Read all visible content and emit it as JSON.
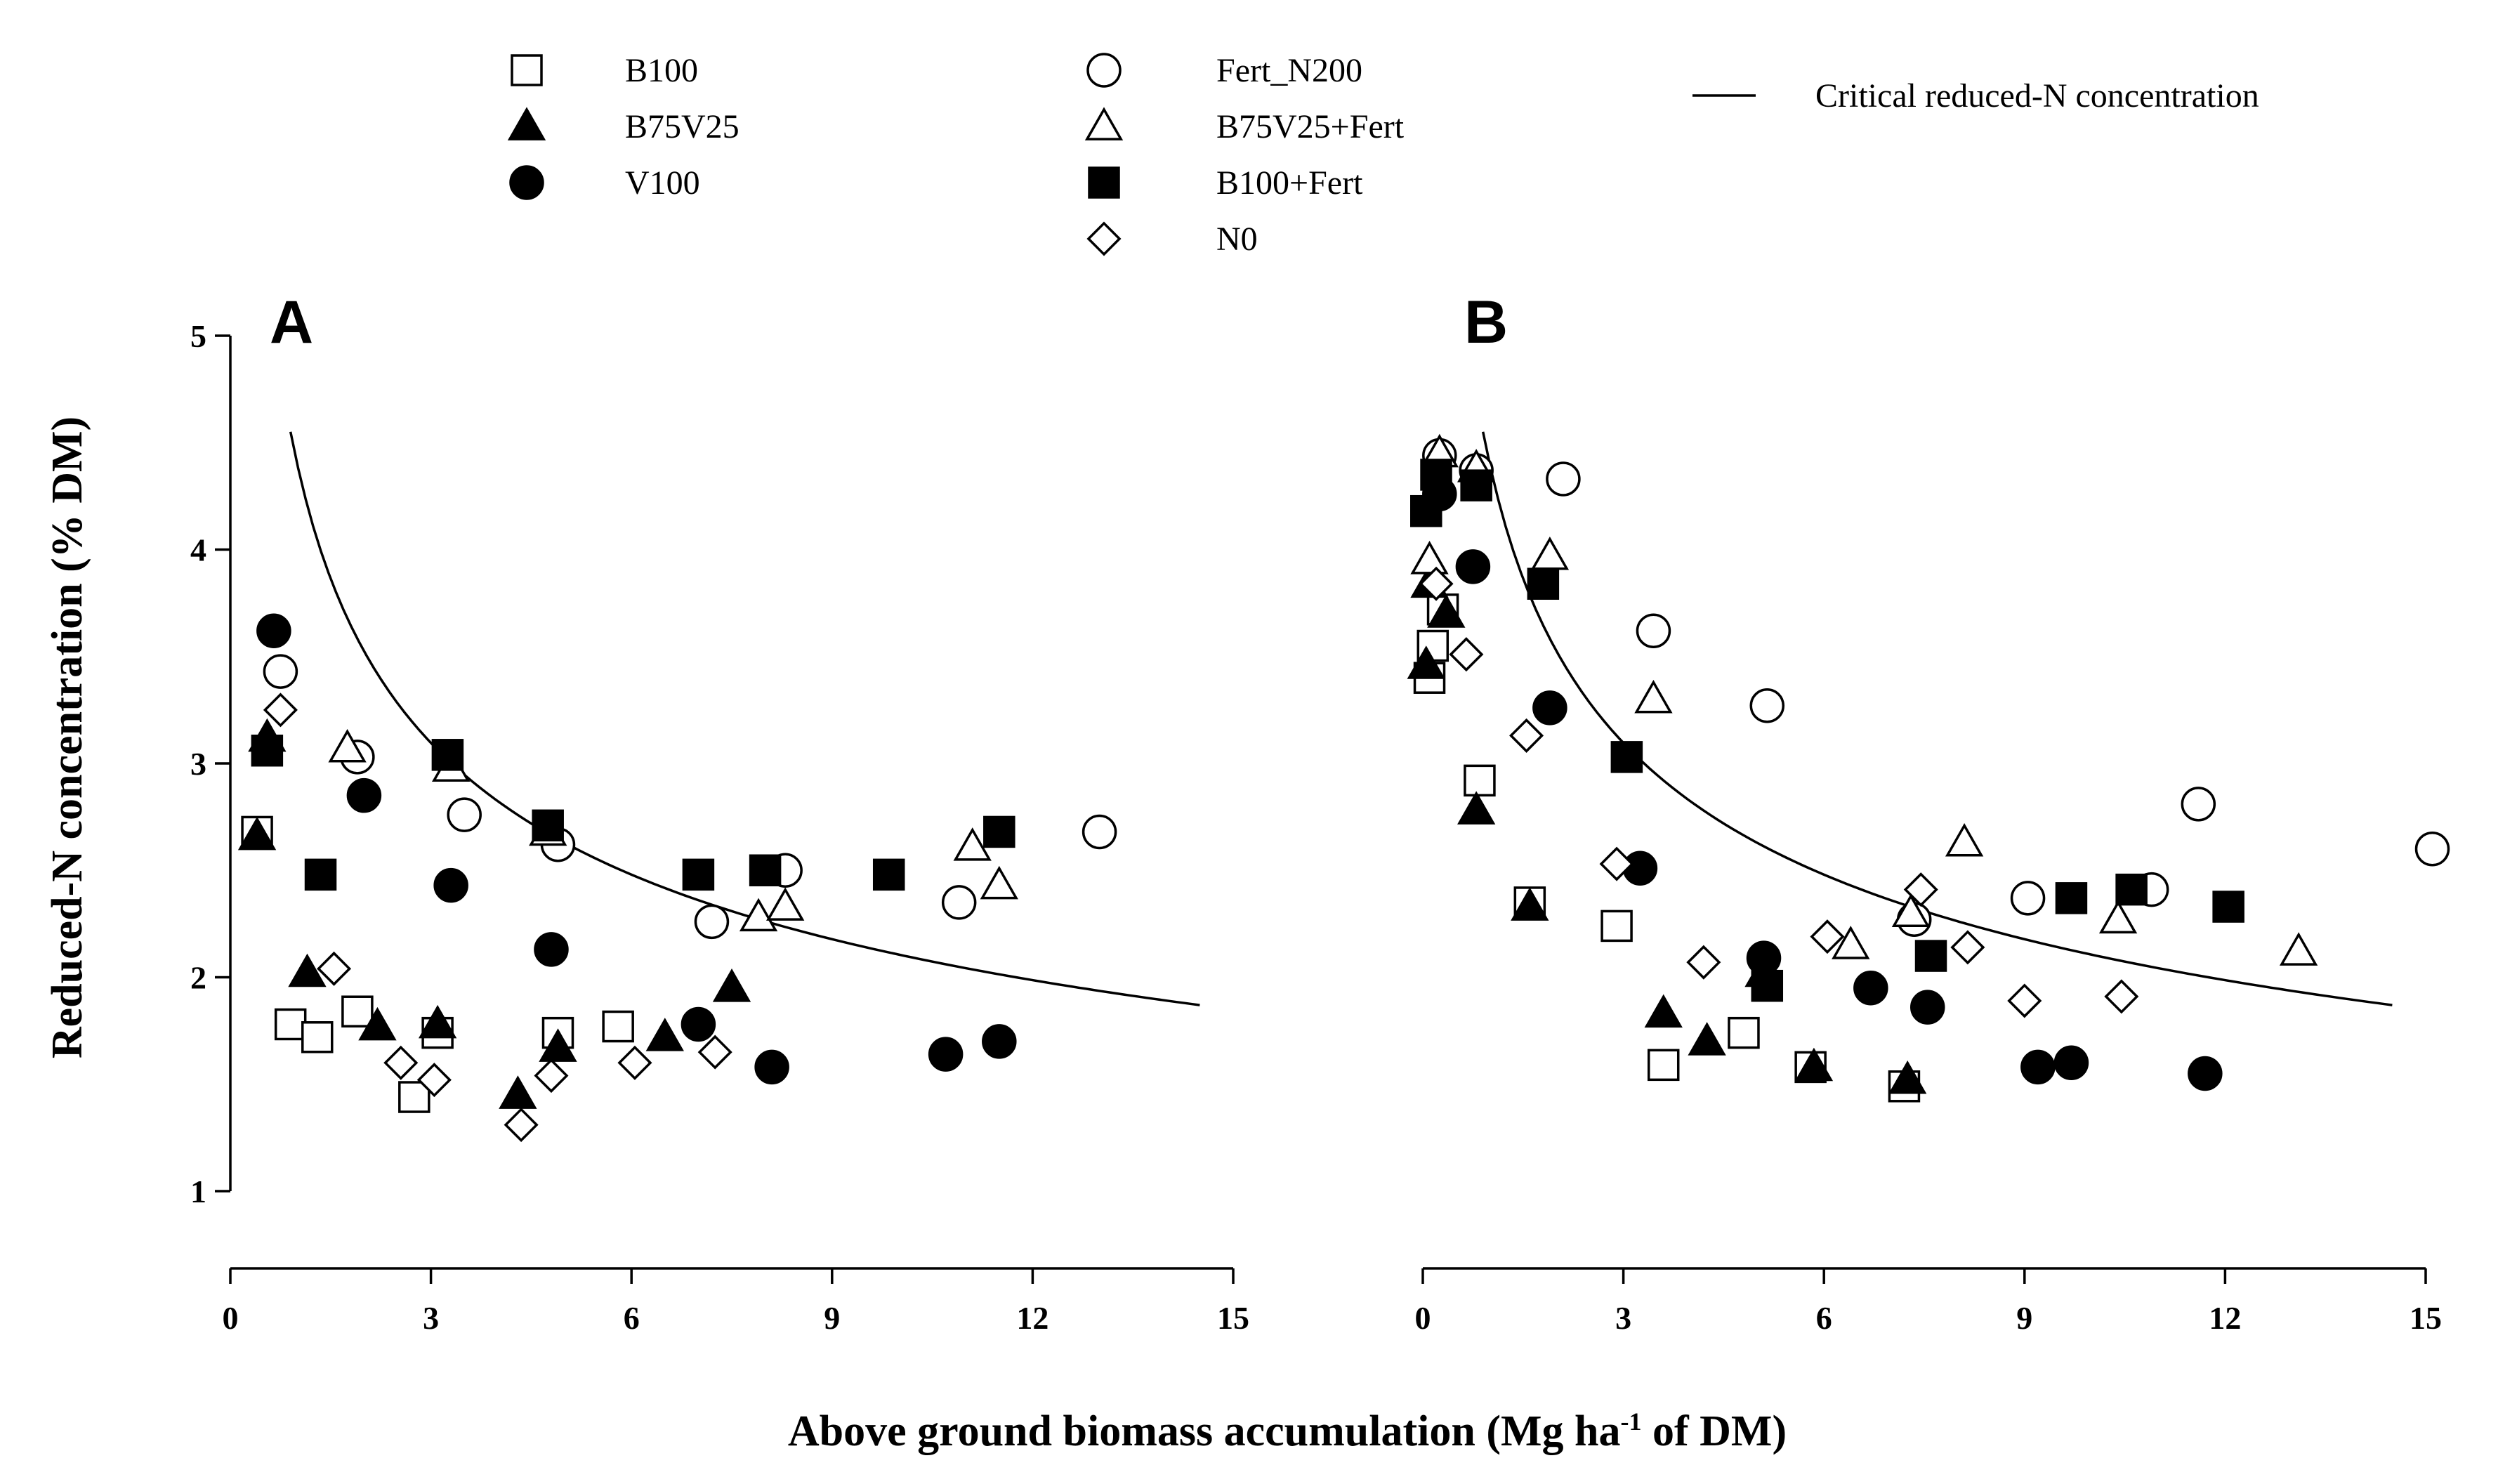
{
  "chart_data": {
    "type": "scatter",
    "y_axis_title": "Reduced-N concentration (% DM)",
    "x_axis_title": {
      "prefix": "Above ground biomass accumulation (Mg ha",
      "superscript": "-1",
      "suffix": " of DM)"
    },
    "x_ticks": [
      0,
      3,
      6,
      9,
      12,
      15
    ],
    "y_ticks": [
      1,
      2,
      3,
      4,
      5
    ],
    "xlim": [
      0,
      15
    ],
    "ylim": [
      1,
      5
    ],
    "legend": [
      {
        "key": "B100",
        "label": "B100",
        "marker": "square-open"
      },
      {
        "key": "B75V25",
        "label": "B75V25",
        "marker": "triangle-filled"
      },
      {
        "key": "V100",
        "label": "V100",
        "marker": "circle-filled"
      },
      {
        "key": "Fert_N200",
        "label": "Fert_N200",
        "marker": "circle-open"
      },
      {
        "key": "B75V25_Fert",
        "label": "B75V25+Fert",
        "marker": "triangle-open"
      },
      {
        "key": "B100_Fert",
        "label": "B100+Fert",
        "marker": "square-filled"
      },
      {
        "key": "N0",
        "label": "N0",
        "marker": "diamond-open"
      },
      {
        "key": "critical",
        "label": "Critical reduced-N concentration",
        "marker": "line"
      }
    ],
    "critical_curve": {
      "x_min": 0.9,
      "x_max": 14.5
    },
    "panels": [
      {
        "id": "A",
        "label": "A",
        "series": [
          {
            "key": "B100",
            "points": [
              [
                0.4,
                2.68
              ],
              [
                0.9,
                1.78
              ],
              [
                1.3,
                1.72
              ],
              [
                1.9,
                1.84
              ],
              [
                2.75,
                1.44
              ],
              [
                3.1,
                1.74
              ],
              [
                4.9,
                1.74
              ],
              [
                5.8,
                1.77
              ]
            ]
          },
          {
            "key": "B75V25",
            "points": [
              [
                0.4,
                2.66
              ],
              [
                0.55,
                3.12
              ],
              [
                1.15,
                2.02
              ],
              [
                2.2,
                1.77
              ],
              [
                3.1,
                1.78
              ],
              [
                4.3,
                1.45
              ],
              [
                4.9,
                1.67
              ],
              [
                6.5,
                1.72
              ],
              [
                7.5,
                1.95
              ]
            ]
          },
          {
            "key": "V100",
            "points": [
              [
                0.65,
                3.62
              ],
              [
                2.0,
                2.85
              ],
              [
                3.3,
                2.43
              ],
              [
                4.8,
                2.13
              ],
              [
                7.0,
                1.78
              ],
              [
                8.1,
                1.58
              ],
              [
                10.7,
                1.64
              ],
              [
                11.5,
                1.7
              ]
            ]
          },
          {
            "key": "Fert_N200",
            "points": [
              [
                0.75,
                3.43
              ],
              [
                1.9,
                3.03
              ],
              [
                3.5,
                2.76
              ],
              [
                4.9,
                2.62
              ],
              [
                7.2,
                2.26
              ],
              [
                8.3,
                2.5
              ],
              [
                10.9,
                2.35
              ],
              [
                13.0,
                2.68
              ]
            ]
          },
          {
            "key": "B75V25_Fert",
            "points": [
              [
                1.75,
                3.07
              ],
              [
                3.3,
                2.98
              ],
              [
                4.75,
                2.68
              ],
              [
                7.9,
                2.28
              ],
              [
                8.3,
                2.33
              ],
              [
                11.1,
                2.61
              ],
              [
                11.5,
                2.43
              ]
            ]
          },
          {
            "key": "B100_Fert",
            "points": [
              [
                0.55,
                3.06
              ],
              [
                1.35,
                2.48
              ],
              [
                3.25,
                3.04
              ],
              [
                4.75,
                2.71
              ],
              [
                7.0,
                2.48
              ],
              [
                8.0,
                2.5
              ],
              [
                9.85,
                2.48
              ],
              [
                11.5,
                2.68
              ]
            ]
          },
          {
            "key": "N0",
            "points": [
              [
                0.75,
                3.25
              ],
              [
                1.55,
                2.04
              ],
              [
                2.55,
                1.6
              ],
              [
                3.05,
                1.52
              ],
              [
                4.35,
                1.31
              ],
              [
                4.8,
                1.54
              ],
              [
                6.05,
                1.6
              ],
              [
                7.25,
                1.65
              ]
            ]
          }
        ]
      },
      {
        "id": "B",
        "label": "B",
        "series": [
          {
            "key": "B100",
            "points": [
              [
                0.1,
                3.4
              ],
              [
                0.15,
                3.55
              ],
              [
                0.3,
                3.72
              ],
              [
                0.85,
                2.92
              ],
              [
                1.6,
                2.35
              ],
              [
                2.9,
                2.24
              ],
              [
                3.6,
                1.59
              ],
              [
                4.8,
                1.74
              ],
              [
                5.8,
                1.58
              ],
              [
                7.2,
                1.49
              ]
            ]
          },
          {
            "key": "B75V25",
            "points": [
              [
                0.05,
                3.46
              ],
              [
                0.1,
                3.84
              ],
              [
                0.35,
                3.7
              ],
              [
                0.8,
                2.78
              ],
              [
                1.6,
                2.33
              ],
              [
                3.6,
                1.83
              ],
              [
                4.25,
                1.7
              ],
              [
                5.1,
                2.02
              ],
              [
                5.85,
                1.58
              ],
              [
                7.25,
                1.52
              ]
            ]
          },
          {
            "key": "V100",
            "points": [
              [
                0.25,
                4.26
              ],
              [
                0.75,
                3.92
              ],
              [
                1.9,
                3.26
              ],
              [
                3.25,
                2.51
              ],
              [
                5.1,
                2.09
              ],
              [
                6.7,
                1.95
              ],
              [
                7.55,
                1.86
              ],
              [
                9.2,
                1.58
              ],
              [
                9.7,
                1.6
              ],
              [
                11.7,
                1.55
              ]
            ]
          },
          {
            "key": "Fert_N200",
            "points": [
              [
                0.25,
                4.44
              ],
              [
                0.8,
                4.37
              ],
              [
                2.1,
                4.33
              ],
              [
                3.45,
                3.62
              ],
              [
                5.15,
                3.27
              ],
              [
                7.35,
                2.27
              ],
              [
                9.05,
                2.37
              ],
              [
                10.9,
                2.41
              ],
              [
                11.6,
                2.81
              ],
              [
                15.1,
                2.6
              ]
            ]
          },
          {
            "key": "B75V25_Fert",
            "points": [
              [
                0.1,
                3.95
              ],
              [
                0.25,
                4.45
              ],
              [
                0.8,
                4.38
              ],
              [
                1.9,
                3.97
              ],
              [
                3.45,
                3.3
              ],
              [
                6.4,
                2.15
              ],
              [
                7.3,
                2.3
              ],
              [
                8.1,
                2.63
              ],
              [
                10.4,
                2.27
              ],
              [
                13.1,
                2.12
              ]
            ]
          },
          {
            "key": "B100_Fert",
            "points": [
              [
                0.05,
                4.18
              ],
              [
                0.2,
                4.35
              ],
              [
                0.8,
                4.3
              ],
              [
                1.8,
                3.84
              ],
              [
                3.05,
                3.03
              ],
              [
                5.15,
                1.96
              ],
              [
                7.6,
                2.1
              ],
              [
                9.7,
                2.37
              ],
              [
                10.6,
                2.41
              ],
              [
                12.05,
                2.33
              ]
            ]
          },
          {
            "key": "N0",
            "points": [
              [
                0.2,
                3.84
              ],
              [
                0.65,
                3.51
              ],
              [
                1.55,
                3.13
              ],
              [
                2.9,
                2.53
              ],
              [
                4.2,
                2.07
              ],
              [
                6.05,
                2.19
              ],
              [
                7.45,
                2.41
              ],
              [
                8.15,
                2.14
              ],
              [
                9.0,
                1.89
              ],
              [
                10.45,
                1.91
              ]
            ]
          }
        ]
      }
    ]
  }
}
